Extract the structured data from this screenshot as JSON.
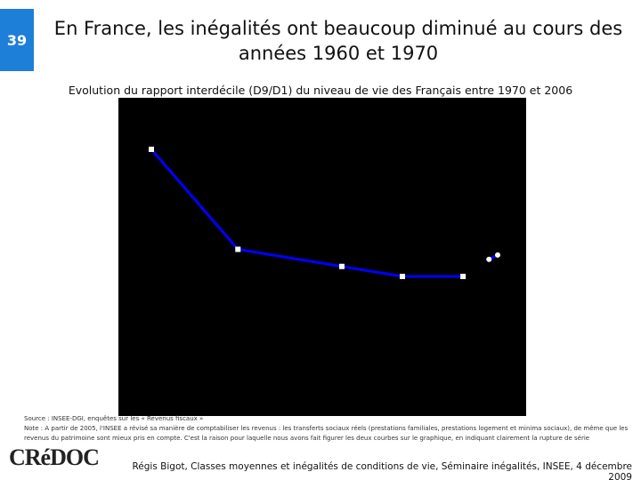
{
  "slide_number": "39",
  "title": "En France, les inégalités ont beaucoup diminué au cours des années 1960 et 1970",
  "chart_data": {
    "type": "line",
    "subtitle": "Evolution du rapport interdécile (D9/D1) du niveau de vie des Français entre 1970 et 2006",
    "background": "#000000",
    "series": [
      {
        "color": "#0000ff",
        "marker": "square",
        "x": [
          1970,
          1975,
          1981,
          1984.5,
          1988
        ],
        "values": [
          4.6,
          3.9,
          3.78,
          3.71,
          3.71
        ]
      },
      {
        "color": "#0000ff",
        "marker": "circle",
        "x": [
          1989.5,
          1990
        ],
        "values": [
          3.83,
          3.86
        ]
      }
    ]
  },
  "source": "Source : INSEE-DGI, enquêtes sur les « Revenus fiscaux »",
  "note": "Note : A partir de 2005, l'INSEE a révisé sa manière de comptabiliser les revenus : les transferts sociaux réels (prestations familiales, prestations logement et minima sociaux), de même que les revenus du patrimoine sont mieux pris en compte. C'est la raison pour laquelle nous avons fait figurer les deux courbes sur le graphique, en indiquant clairement la rupture de série",
  "logo": "CRéDOC",
  "footer": "Régis Bigot, Classes moyennes et inégalités de conditions de vie, Séminaire inégalités, INSEE, 4 décembre 2009"
}
